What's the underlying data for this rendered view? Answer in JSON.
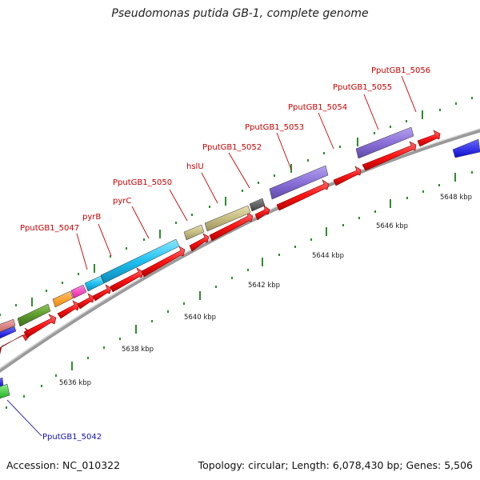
{
  "title": "Pseudomonas putida GB-1, complete genome",
  "footer": {
    "accession": "Accession: NC_010322",
    "stats": "Topology: circular; Length: 6,078,430 bp; Genes: 5,506"
  },
  "colors": {
    "backbone": "#8a8a8a",
    "tick": "#2e8b2e",
    "cds": "#ff1a1a",
    "label_red": "#c80000",
    "label_blue": "#1010b0",
    "leader": "#c80000"
  },
  "scale_labels": [
    "5636 kbp",
    "5638 kbp",
    "5640 kbp",
    "5642 kbp",
    "5644 kbp",
    "5646 kbp",
    "5648 kbp"
  ],
  "gene_labels": [
    {
      "text": "PputGB1_5047",
      "color": "red"
    },
    {
      "text": "pyrB",
      "color": "red"
    },
    {
      "text": "pyrC",
      "color": "red"
    },
    {
      "text": "PputGB1_5050",
      "color": "red"
    },
    {
      "text": "hslU",
      "color": "red"
    },
    {
      "text": "PputGB1_5052",
      "color": "red"
    },
    {
      "text": "PputGB1_5053",
      "color": "red"
    },
    {
      "text": "PputGB1_5054",
      "color": "red"
    },
    {
      "text": "PputGB1_5055",
      "color": "red"
    },
    {
      "text": "PputGB1_5056",
      "color": "red"
    },
    {
      "text": "PputGB1_5042",
      "color": "blue"
    }
  ],
  "feature_colors": [
    "#ff1a1a",
    "#5b7fd6",
    "#c8c080",
    "#8a6fd0",
    "#5a5a5a",
    "#22b8e8",
    "#ff7fa0",
    "#e8e",
    "#5b9a2a",
    "#ff9a1a",
    "#ff44bb",
    "#3c3cff",
    "#33c033",
    "#d66"
  ]
}
